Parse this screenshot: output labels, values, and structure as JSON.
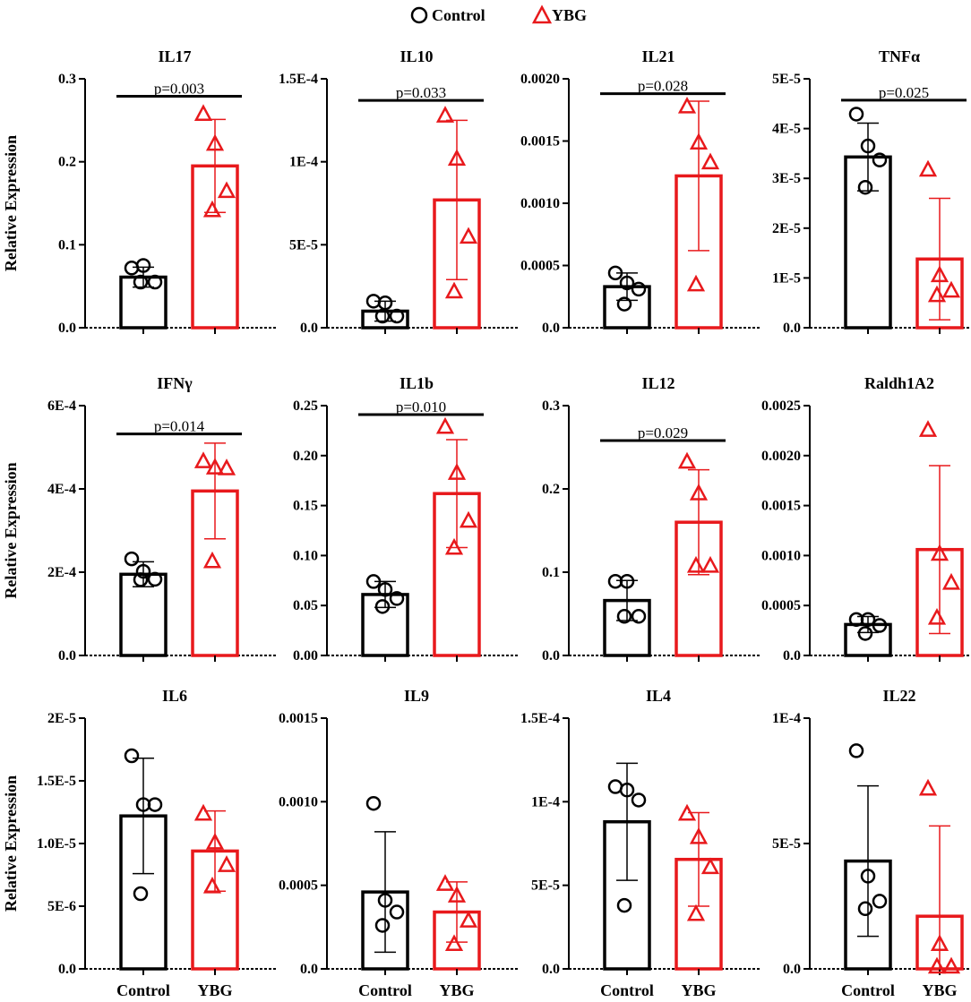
{
  "colors": {
    "control": "#000000",
    "treatment": "#e8191c"
  },
  "legend": [
    {
      "label": "Control",
      "marker": "circle-icon"
    },
    {
      "label": "YBG",
      "marker": "triangle-icon"
    }
  ],
  "chart_data": [
    {
      "type": "bar",
      "title": "IL17",
      "ylabel": "Relative Expression",
      "categories": [
        "Control",
        "YBG"
      ],
      "ylim": [
        0,
        0.3
      ],
      "ticks": [
        0,
        0.1,
        0.2,
        0.3
      ],
      "tick_labels": [
        "0.0",
        "0.1",
        "0.2",
        "0.3"
      ],
      "show_xticklabels": false,
      "means": [
        0.061,
        0.195
      ],
      "errors": [
        0.012,
        0.056
      ],
      "points": [
        [
          0.072,
          0.075,
          0.055,
          0.055
        ],
        [
          0.258,
          0.222,
          0.165,
          0.142
        ]
      ],
      "pvalue": "p=0.003",
      "p_level": 0.279
    },
    {
      "type": "bar",
      "title": "IL10",
      "ylabel": "",
      "categories": [
        "Control",
        "YBG"
      ],
      "ylim": [
        0,
        0.00015
      ],
      "ticks": [
        0,
        5e-05,
        0.0001,
        0.00015
      ],
      "tick_labels": [
        "0.0",
        "5E-5",
        "1E-4",
        "1.5E-4"
      ],
      "show_xticklabels": false,
      "means": [
        1e-05,
        7.7e-05
      ],
      "errors": [
        6e-06,
        4.8e-05
      ],
      "points": [
        [
          1.6e-05,
          1.5e-05,
          7e-06,
          7e-06
        ],
        [
          0.000128,
          0.000102,
          5.5e-05,
          2.2e-05
        ]
      ],
      "pvalue": "p=0.033",
      "p_level": 0.000137
    },
    {
      "type": "bar",
      "title": "IL21",
      "ylabel": "",
      "categories": [
        "Control",
        "YBG"
      ],
      "ylim": [
        0,
        0.002
      ],
      "ticks": [
        0,
        0.0005,
        0.001,
        0.0015,
        0.002
      ],
      "tick_labels": [
        "0.0",
        "0.0005",
        "0.0010",
        "0.0015",
        "0.0020"
      ],
      "show_xticklabels": false,
      "means": [
        0.00033,
        0.00122
      ],
      "errors": [
        0.00011,
        0.0006
      ],
      "points": [
        [
          0.00044,
          0.00036,
          0.00031,
          0.00019
        ],
        [
          0.00178,
          0.00149,
          0.00133,
          0.00035
        ]
      ],
      "pvalue": "p=0.028",
      "p_level": 0.00188
    },
    {
      "type": "bar",
      "title": "TNFα",
      "ylabel": "",
      "categories": [
        "Control",
        "YBG"
      ],
      "ylim": [
        0,
        5e-05
      ],
      "ticks": [
        0,
        1e-05,
        2e-05,
        3e-05,
        4e-05,
        5e-05
      ],
      "tick_labels": [
        "0.0",
        "1E-5",
        "2E-5",
        "3E-5",
        "4E-5",
        "5E-5"
      ],
      "show_xticklabels": false,
      "means": [
        3.43e-05,
        1.38e-05
      ],
      "errors": [
        6.8e-06,
        1.22e-05
      ],
      "points": [
        [
          4.29e-05,
          3.65e-05,
          3.37e-05,
          2.82e-05
        ],
        [
          3.18e-05,
          1.06e-05,
          7.5e-06,
          6.6e-06
        ]
      ],
      "pvalue": "p=0.025",
      "p_level": 4.57e-05
    },
    {
      "type": "bar",
      "title": "IFNγ",
      "ylabel": "Relative Expression",
      "categories": [
        "Control",
        "YBG"
      ],
      "ylim": [
        0,
        0.0006
      ],
      "ticks": [
        0,
        0.0002,
        0.0004,
        0.0006
      ],
      "tick_labels": [
        "0.0",
        "2E-4",
        "4E-4",
        "6E-4"
      ],
      "show_xticklabels": false,
      "means": [
        0.000195,
        0.000395
      ],
      "errors": [
        3e-05,
        0.000115
      ],
      "points": [
        [
          0.000232,
          0.000202,
          0.000183,
          0.000182
        ],
        [
          0.000467,
          0.000452,
          0.00045,
          0.000227
        ]
      ],
      "pvalue": "p=0.014",
      "p_level": 0.000532
    },
    {
      "type": "bar",
      "title": "IL1b",
      "ylabel": "",
      "categories": [
        "Control",
        "YBG"
      ],
      "ylim": [
        0,
        0.25
      ],
      "ticks": [
        0,
        0.05,
        0.1,
        0.15,
        0.2,
        0.25
      ],
      "tick_labels": [
        "0.00",
        "0.05",
        "0.10",
        "0.15",
        "0.20",
        "0.25"
      ],
      "show_xticklabels": false,
      "means": [
        0.061,
        0.162
      ],
      "errors": [
        0.013,
        0.054
      ],
      "points": [
        [
          0.074,
          0.066,
          0.057,
          0.049
        ],
        [
          0.229,
          0.183,
          0.135,
          0.108
        ]
      ],
      "pvalue": "p=0.010",
      "p_level": 0.241
    },
    {
      "type": "bar",
      "title": "IL12",
      "ylabel": "",
      "categories": [
        "Control",
        "YBG"
      ],
      "ylim": [
        0,
        0.3
      ],
      "ticks": [
        0,
        0.1,
        0.2,
        0.3
      ],
      "tick_labels": [
        "0.0",
        "0.1",
        "0.2",
        "0.3"
      ],
      "show_xticklabels": false,
      "means": [
        0.066,
        0.16
      ],
      "errors": [
        0.024,
        0.063
      ],
      "points": [
        [
          0.089,
          0.089,
          0.047,
          0.047
        ],
        [
          0.233,
          0.195,
          0.108,
          0.108
        ]
      ],
      "pvalue": "p=0.029",
      "p_level": 0.258
    },
    {
      "type": "bar",
      "title": "Raldh1A2",
      "ylabel": "",
      "categories": [
        "Control",
        "YBG"
      ],
      "ylim": [
        0,
        0.0025
      ],
      "ticks": [
        0,
        0.0005,
        0.001,
        0.0015,
        0.002,
        0.0025
      ],
      "tick_labels": [
        "0.0",
        "0.0005",
        "0.0010",
        "0.0015",
        "0.0020",
        "0.0025"
      ],
      "show_xticklabels": false,
      "means": [
        0.00031,
        0.00106
      ],
      "errors": [
        8e-05,
        0.00084
      ],
      "points": [
        [
          0.00036,
          0.00036,
          0.0003,
          0.00022
        ],
        [
          0.00226,
          0.00102,
          0.00073,
          0.00038
        ]
      ],
      "pvalue": "",
      "p_level": null
    },
    {
      "type": "bar",
      "title": "IL6",
      "ylabel": "Relative Expression",
      "categories": [
        "Control",
        "YBG"
      ],
      "ylim": [
        0,
        2e-05
      ],
      "ticks": [
        0,
        5e-06,
        1e-05,
        1.5e-05,
        2e-05
      ],
      "tick_labels": [
        "0.0",
        "5E-6",
        "1.0E-5",
        "1.5E-5",
        "2E-5"
      ],
      "show_xticklabels": true,
      "means": [
        1.22e-05,
        9.4e-06
      ],
      "errors": [
        4.6e-06,
        3.2e-06
      ],
      "points": [
        [
          1.7e-05,
          1.31e-05,
          1.31e-05,
          6e-06
        ],
        [
          1.24e-05,
          1.01e-05,
          8.3e-06,
          6.6e-06
        ]
      ],
      "pvalue": "",
      "p_level": null
    },
    {
      "type": "bar",
      "title": "IL9",
      "ylabel": "",
      "categories": [
        "Control",
        "YBG"
      ],
      "ylim": [
        0,
        0.0015
      ],
      "ticks": [
        0,
        0.0005,
        0.001,
        0.0015
      ],
      "tick_labels": [
        "0.0",
        "0.0005",
        "0.0010",
        "0.0015"
      ],
      "show_xticklabels": true,
      "means": [
        0.00046,
        0.00034
      ],
      "errors": [
        0.00036,
        0.00018
      ],
      "points": [
        [
          0.00099,
          0.00041,
          0.00034,
          0.00026
        ],
        [
          0.00051,
          0.00044,
          0.00029,
          0.00015
        ]
      ],
      "pvalue": "",
      "p_level": null
    },
    {
      "type": "bar",
      "title": "IL4",
      "ylabel": "",
      "categories": [
        "Control",
        "YBG"
      ],
      "ylim": [
        0,
        0.00015
      ],
      "ticks": [
        0,
        5e-05,
        0.0001,
        0.00015
      ],
      "tick_labels": [
        "0.0",
        "5E-5",
        "1E-4",
        "1.5E-4"
      ],
      "show_xticklabels": true,
      "means": [
        8.8e-05,
        6.55e-05
      ],
      "errors": [
        3.5e-05,
        2.8e-05
      ],
      "points": [
        [
          0.000109,
          0.000107,
          0.000101,
          3.8e-05
        ],
        [
          9.3e-05,
          7.9e-05,
          6.1e-05,
          3.3e-05
        ]
      ],
      "pvalue": "",
      "p_level": null
    },
    {
      "type": "bar",
      "title": "IL22",
      "ylabel": "",
      "categories": [
        "Control",
        "YBG"
      ],
      "ylim": [
        0,
        0.0001
      ],
      "ticks": [
        0,
        5e-05,
        0.0001
      ],
      "tick_labels": [
        "0.0",
        "5E-5",
        "1E-4"
      ],
      "show_xticklabels": true,
      "means": [
        4.3e-05,
        2.1e-05
      ],
      "errors": [
        3e-05,
        3.6e-05
      ],
      "points": [
        [
          8.7e-05,
          3.7e-05,
          2.7e-05,
          2.4e-05
        ],
        [
          7.2e-05,
          1e-05,
          1e-06,
          1e-06
        ]
      ],
      "pvalue": "",
      "p_level": null
    }
  ]
}
